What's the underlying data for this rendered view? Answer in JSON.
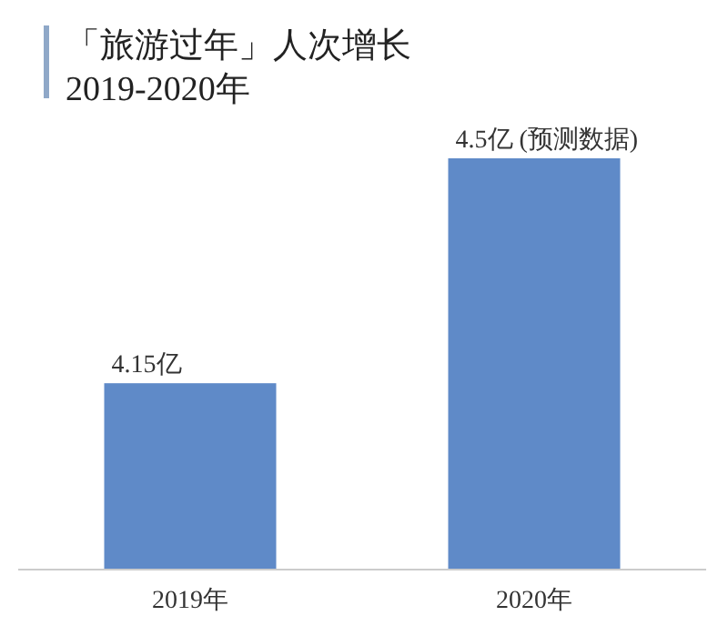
{
  "chart_data": {
    "type": "bar",
    "title": "「旅游过年」人次增长",
    "subtitle": "2019-2020年",
    "categories": [
      "2019年",
      "2020年"
    ],
    "values": [
      4.15,
      4.5
    ],
    "value_labels": [
      "4.15亿",
      "4.5亿 (预测数据)"
    ],
    "color": "#5f8ac8",
    "ylim": [
      3.86,
      4.5
    ],
    "grid": false
  }
}
